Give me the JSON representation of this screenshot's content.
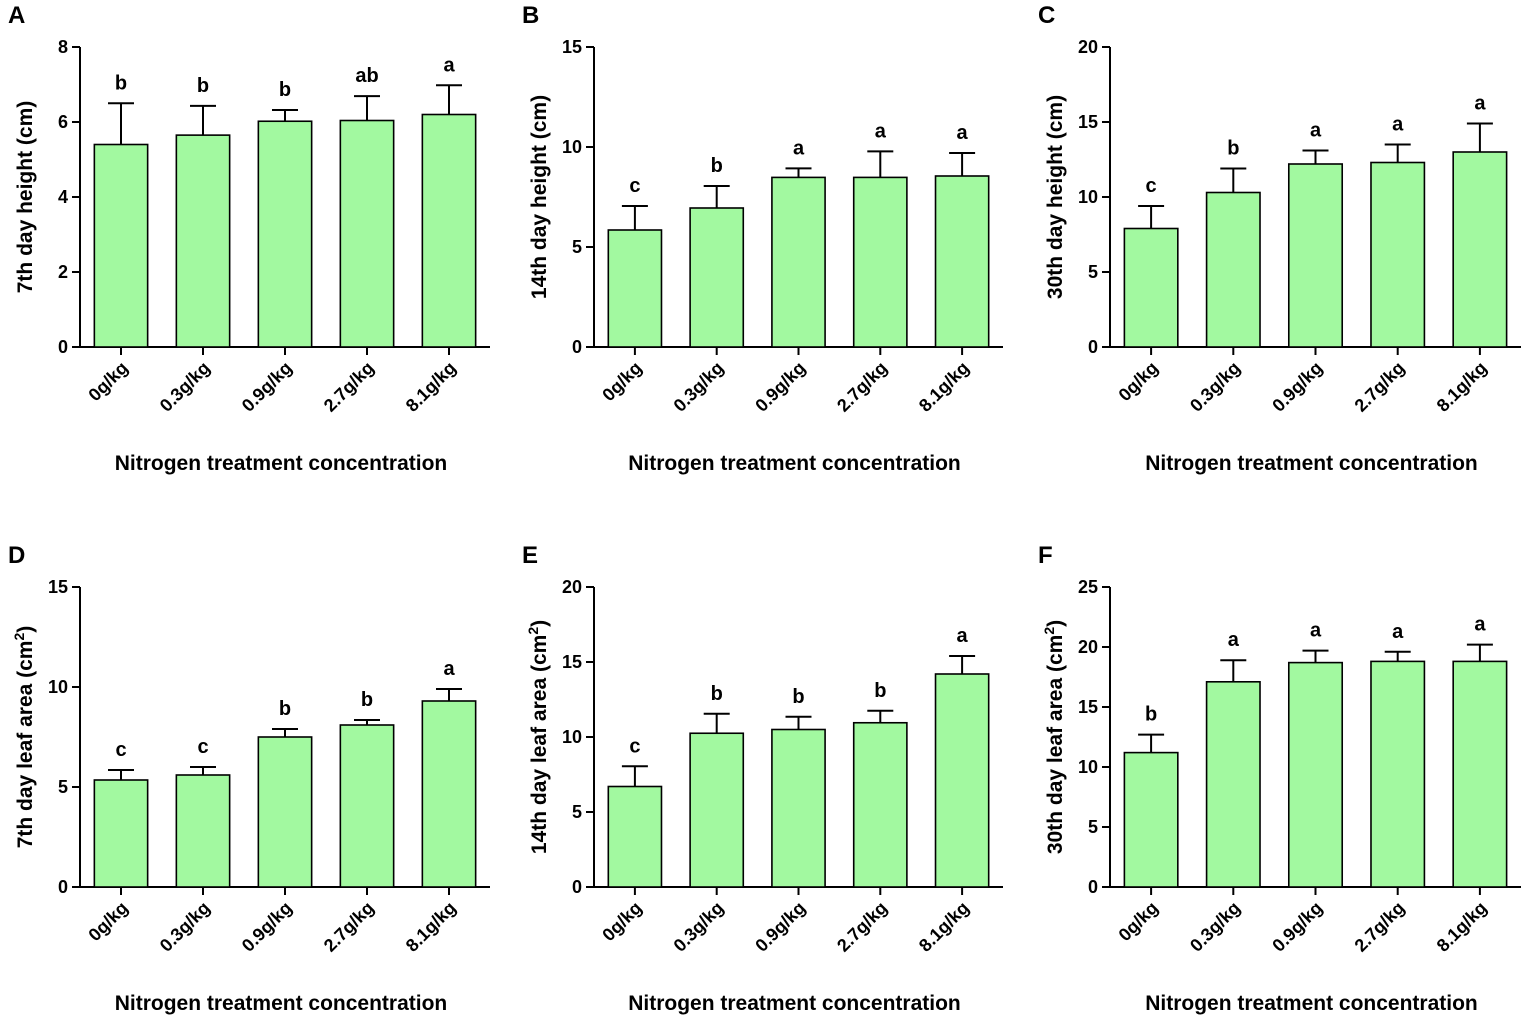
{
  "colors": {
    "bar": "#a2f9a0",
    "stroke": "#000000"
  },
  "chart_data": [
    {
      "panel": "A",
      "type": "bar",
      "categories": [
        "0g/kg",
        "0.3g/kg",
        "0.9g/kg",
        "2.7g/kg",
        "8.1g/kg"
      ],
      "values": [
        5.4,
        5.65,
        6.02,
        6.04,
        6.2
      ],
      "errors": [
        1.1,
        0.78,
        0.3,
        0.65,
        0.78
      ],
      "significance": [
        "b",
        "b",
        "b",
        "ab",
        "a"
      ],
      "xlabel": "Nitrogen treatment concentration",
      "ylabel_main": "7th day height (cm)",
      "ylabel_sup": "",
      "ylabel_end": "",
      "ylim": [
        0,
        8
      ],
      "yticks": [
        0,
        2,
        4,
        6,
        8
      ]
    },
    {
      "panel": "B",
      "type": "bar",
      "categories": [
        "0g/kg",
        "0.3g/kg",
        "0.9g/kg",
        "2.7g/kg",
        "8.1g/kg"
      ],
      "values": [
        5.85,
        6.95,
        8.48,
        8.48,
        8.55
      ],
      "errors": [
        1.2,
        1.1,
        0.45,
        1.3,
        1.15
      ],
      "significance": [
        "c",
        "b",
        "a",
        "a",
        "a"
      ],
      "xlabel": "Nitrogen treatment concentration",
      "ylabel_main": "14th day height (cm)",
      "ylabel_sup": "",
      "ylabel_end": "",
      "ylim": [
        0,
        15
      ],
      "yticks": [
        0,
        5,
        10,
        15
      ]
    },
    {
      "panel": "C",
      "type": "bar",
      "categories": [
        "0g/kg",
        "0.3g/kg",
        "0.9g/kg",
        "2.7g/kg",
        "8.1g/kg"
      ],
      "values": [
        7.9,
        10.3,
        12.2,
        12.3,
        13.0
      ],
      "errors": [
        1.5,
        1.6,
        0.9,
        1.2,
        1.9
      ],
      "significance": [
        "c",
        "b",
        "a",
        "a",
        "a"
      ],
      "xlabel": "Nitrogen treatment concentration",
      "ylabel_main": "30th day height (cm)",
      "ylabel_sup": "",
      "ylabel_end": "",
      "ylim": [
        0,
        20
      ],
      "yticks": [
        0,
        5,
        10,
        15,
        20
      ]
    },
    {
      "panel": "D",
      "type": "bar",
      "categories": [
        "0g/kg",
        "0.3g/kg",
        "0.9g/kg",
        "2.7g/kg",
        "8.1g/kg"
      ],
      "values": [
        5.35,
        5.6,
        7.5,
        8.1,
        9.3
      ],
      "errors": [
        0.5,
        0.4,
        0.4,
        0.25,
        0.6
      ],
      "significance": [
        "c",
        "c",
        "b",
        "b",
        "a"
      ],
      "xlabel": "Nitrogen treatment concentration",
      "ylabel_main": "7th day leaf area (cm",
      "ylabel_sup": "2",
      "ylabel_end": ")",
      "ylim": [
        0,
        15
      ],
      "yticks": [
        0,
        5,
        10,
        15
      ]
    },
    {
      "panel": "E",
      "type": "bar",
      "categories": [
        "0g/kg",
        "0.3g/kg",
        "0.9g/kg",
        "2.7g/kg",
        "8.1g/kg"
      ],
      "values": [
        6.7,
        10.25,
        10.5,
        10.95,
        14.2
      ],
      "errors": [
        1.35,
        1.3,
        0.85,
        0.8,
        1.2
      ],
      "significance": [
        "c",
        "b",
        "b",
        "b",
        "a"
      ],
      "xlabel": "Nitrogen treatment concentration",
      "ylabel_main": "14th day leaf area (cm",
      "ylabel_sup": "2",
      "ylabel_end": ")",
      "ylim": [
        0,
        20
      ],
      "yticks": [
        0,
        5,
        10,
        15,
        20
      ]
    },
    {
      "panel": "F",
      "type": "bar",
      "categories": [
        "0g/kg",
        "0.3g/kg",
        "0.9g/kg",
        "2.7g/kg",
        "8.1g/kg"
      ],
      "values": [
        11.2,
        17.1,
        18.7,
        18.8,
        18.8
      ],
      "errors": [
        1.5,
        1.8,
        1.0,
        0.8,
        1.4
      ],
      "significance": [
        "b",
        "a",
        "a",
        "a",
        "a"
      ],
      "xlabel": "Nitrogen treatment concentration",
      "ylabel_main": "30th day leaf area (cm",
      "ylabel_sup": "2",
      "ylabel_end": ")",
      "ylim": [
        0,
        25
      ],
      "yticks": [
        0,
        5,
        10,
        15,
        20,
        25
      ]
    }
  ]
}
